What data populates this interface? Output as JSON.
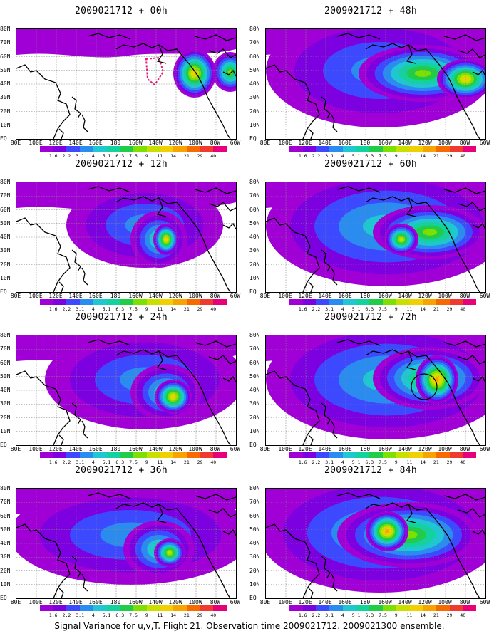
{
  "panels": [
    {
      "title": "2009021712 + 00h",
      "blobs": [
        [
          250,
          62,
          30,
          34,
          9
        ],
        [
          300,
          60,
          25,
          28,
          7
        ]
      ],
      "bg": [
        [
          250,
          62,
          28,
          26,
          4
        ]
      ],
      "target_box": true
    },
    {
      "title": "2009021712 + 48h",
      "blobs": [
        [
          220,
          62,
          90,
          40,
          7
        ],
        [
          280,
          70,
          40,
          28,
          9
        ]
      ],
      "bg": [
        [
          160,
          58,
          160,
          80,
          3
        ]
      ]
    },
    {
      "title": "2009021712 + 12h",
      "blobs": [
        [
          210,
          80,
          18,
          22,
          9
        ]
      ],
      "bg": [
        [
          180,
          60,
          110,
          60,
          3
        ],
        [
          200,
          80,
          40,
          40,
          5
        ]
      ]
    },
    {
      "title": "2009021712 + 60h",
      "blobs": [
        [
          230,
          70,
          80,
          38,
          7
        ],
        [
          190,
          80,
          24,
          22,
          8
        ]
      ],
      "bg": [
        [
          170,
          62,
          170,
          84,
          4
        ]
      ]
    },
    {
      "title": "2009021712 + 24h",
      "blobs": [
        [
          220,
          86,
          26,
          24,
          9
        ]
      ],
      "bg": [
        [
          180,
          62,
          140,
          70,
          3
        ],
        [
          210,
          80,
          50,
          40,
          5
        ]
      ]
    },
    {
      "title": "2009021712 + 72h",
      "blobs": [
        [
          230,
          60,
          80,
          44,
          7
        ],
        [
          240,
          62,
          30,
          34,
          10
        ]
      ],
      "bg": [
        [
          170,
          62,
          170,
          84,
          4
        ]
      ],
      "circle": true
    },
    {
      "title": "2009021712 + 36h",
      "blobs": [
        [
          215,
          90,
          22,
          20,
          8
        ]
      ],
      "bg": [
        [
          160,
          65,
          170,
          70,
          3
        ],
        [
          200,
          85,
          50,
          40,
          5
        ]
      ]
    },
    {
      "title": "2009021712 + 84h",
      "blobs": [
        [
          200,
          65,
          100,
          46,
          7
        ],
        [
          170,
          60,
          30,
          28,
          10
        ]
      ],
      "bg": [
        [
          160,
          62,
          170,
          84,
          4
        ]
      ]
    }
  ],
  "y_labels": [
    "80N",
    "70N",
    "60N",
    "50N",
    "40N",
    "30N",
    "20N",
    "10N",
    "EQ"
  ],
  "x_labels": [
    "80E",
    "100E",
    "120E",
    "140E",
    "160E",
    "180",
    "160W",
    "140W",
    "120W",
    "100W",
    "80W",
    "60W"
  ],
  "colorbar": {
    "colors": [
      "#a000d6",
      "#7d00e0",
      "#3d49ff",
      "#2b8cf0",
      "#1ec7d2",
      "#12d39e",
      "#20cc48",
      "#7ee000",
      "#c8e000",
      "#f0d000",
      "#f7a300",
      "#f76a00",
      "#f03a30",
      "#e8007a"
    ],
    "labels": [
      "1.6",
      "2.2",
      "3.1",
      "4",
      "5.1",
      "6.3",
      "7.5",
      "9",
      "11",
      "14",
      "21",
      "29",
      "40"
    ]
  },
  "caption": "Signal Variance for u,v,T. Flight 21. Observation time 2009021712. 2009021300 ensemble."
}
